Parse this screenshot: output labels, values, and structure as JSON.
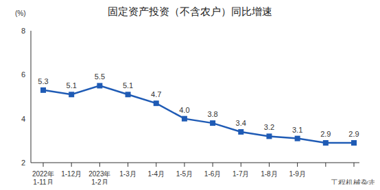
{
  "chart_data": {
    "type": "line",
    "title": "固定资产投资（不含农户）同比增速",
    "y_label": "(%)",
    "categories": [
      "2022年\n1-11月",
      "1-12月",
      "2023年\n1-2月",
      "1-3月",
      "1-4月",
      "1-5月",
      "1-6月",
      "1-7月",
      "1-8月",
      "1-9月",
      null,
      null
    ],
    "values": [
      5.3,
      5.1,
      5.5,
      5.1,
      4.7,
      4.0,
      3.8,
      3.4,
      3.2,
      3.1,
      2.9,
      2.9
    ],
    "value_labels": [
      "5.3",
      "5.1",
      "5.5",
      "5.1",
      "4.7",
      "4.0",
      "3.8",
      "3.4",
      "3.2",
      "3.1",
      "2.9",
      "2.9"
    ],
    "color": "#1f5bb5",
    "marker": "square",
    "ylim": [
      2,
      8
    ],
    "yticks": [
      2,
      4,
      6,
      8
    ],
    "grid": false,
    "data_labels": true,
    "annotations": [
      "工程机械杂志"
    ]
  }
}
